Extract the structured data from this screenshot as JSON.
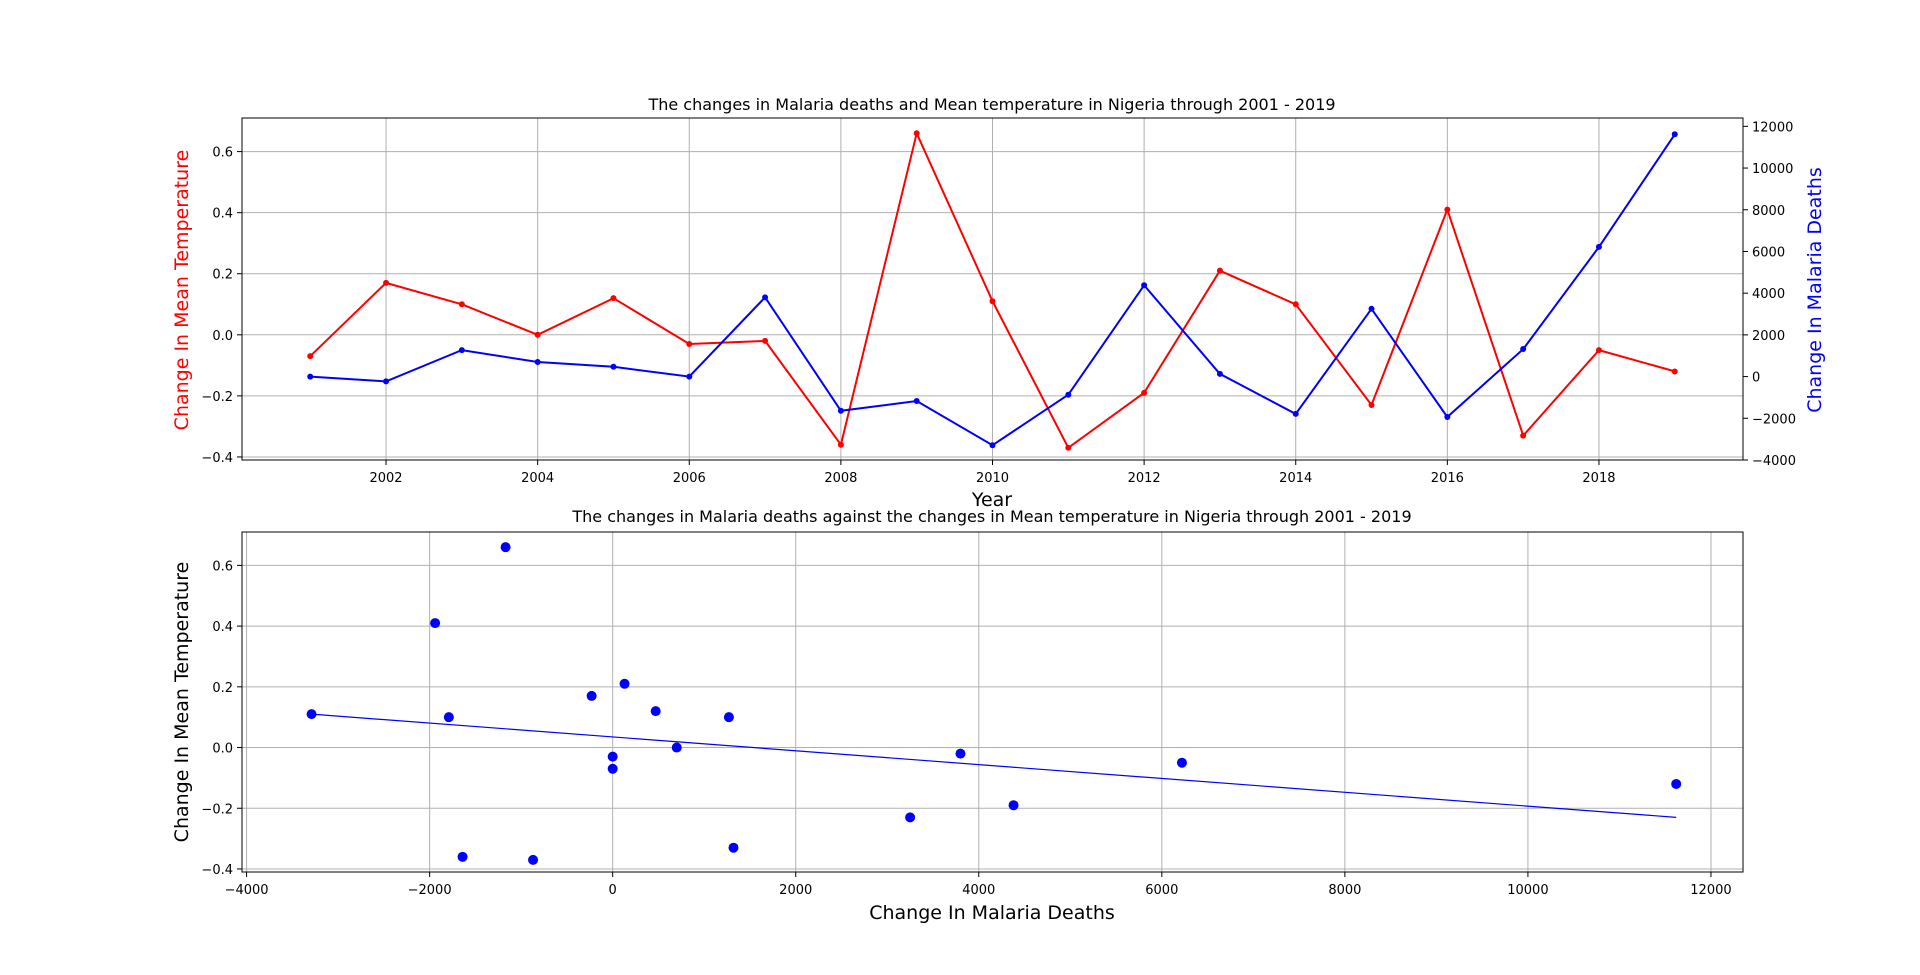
{
  "chart_data": [
    {
      "type": "line",
      "title": "The changes in Malaria deaths and Mean temperature in Nigeria through 2001 - 2019",
      "xlabel": "Year",
      "ylabel_left": "Change In Mean Temperature",
      "ylabel_right": "Change In Malaria Deaths",
      "x": [
        2001,
        2002,
        2003,
        2004,
        2005,
        2006,
        2007,
        2008,
        2009,
        2010,
        2011,
        2012,
        2013,
        2014,
        2015,
        2016,
        2017,
        2018,
        2019
      ],
      "x_ticks": [
        "2002",
        "2004",
        "2006",
        "2008",
        "2010",
        "2012",
        "2014",
        "2016",
        "2018"
      ],
      "xlim": [
        2000.1,
        2019.9
      ],
      "ylim_left": [
        -0.41,
        0.71
      ],
      "ylim_right": [
        -4000,
        12400
      ],
      "y_ticks_left": [
        "−0.4",
        "−0.2",
        "0.0",
        "0.2",
        "0.4",
        "0.6"
      ],
      "y_ticks_right": [
        "−4000",
        "−2000",
        "0",
        "2000",
        "4000",
        "6000",
        "8000",
        "10000",
        "12000"
      ],
      "grid": true,
      "series": [
        {
          "axis": "left",
          "color": "#ff0000",
          "values": [
            -0.07,
            0.17,
            0.1,
            0.0,
            0.12,
            -0.03,
            -0.02,
            -0.36,
            0.66,
            0.11,
            -0.37,
            -0.19,
            0.21,
            0.1,
            -0.23,
            0.41,
            -0.33,
            -0.05,
            -0.12
          ]
        },
        {
          "axis": "right",
          "color": "#0000ff",
          "values": [
            0,
            -230,
            1270,
            700,
            470,
            0,
            3800,
            -1640,
            -1170,
            -3290,
            -870,
            4380,
            130,
            -1790,
            3250,
            -1940,
            1320,
            6220,
            11620
          ]
        }
      ]
    },
    {
      "type": "scatter",
      "title": "The changes in Malaria deaths against the changes in Mean temperature in Nigeria through 2001 - 2019",
      "xlabel": "Change In Malaria Deaths",
      "ylabel": "Change In Mean Temperature",
      "xlim": [
        -4050,
        12350
      ],
      "ylim": [
        -0.41,
        0.71
      ],
      "x_ticks": [
        "−4000",
        "−2000",
        "0",
        "2000",
        "4000",
        "6000",
        "8000",
        "10000",
        "12000"
      ],
      "y_ticks": [
        "−0.4",
        "−0.2",
        "0.0",
        "0.2",
        "0.4",
        "0.6"
      ],
      "grid": true,
      "color": "#0000ff",
      "points": [
        {
          "x": 0,
          "y": -0.07
        },
        {
          "x": -230,
          "y": 0.17
        },
        {
          "x": 1270,
          "y": 0.1
        },
        {
          "x": 700,
          "y": 0.0
        },
        {
          "x": 470,
          "y": 0.12
        },
        {
          "x": 0,
          "y": -0.03
        },
        {
          "x": 3800,
          "y": -0.02
        },
        {
          "x": -1640,
          "y": -0.36
        },
        {
          "x": -1170,
          "y": 0.66
        },
        {
          "x": -3290,
          "y": 0.11
        },
        {
          "x": -870,
          "y": -0.37
        },
        {
          "x": 4380,
          "y": -0.19
        },
        {
          "x": 130,
          "y": 0.21
        },
        {
          "x": -1790,
          "y": 0.1
        },
        {
          "x": 3250,
          "y": -0.23
        },
        {
          "x": -1940,
          "y": 0.41
        },
        {
          "x": 1320,
          "y": -0.33
        },
        {
          "x": 6220,
          "y": -0.05
        },
        {
          "x": 11620,
          "y": -0.12
        }
      ],
      "trendline": {
        "x": [
          -3290,
          11620
        ],
        "y": [
          0.11,
          -0.23
        ]
      }
    }
  ]
}
